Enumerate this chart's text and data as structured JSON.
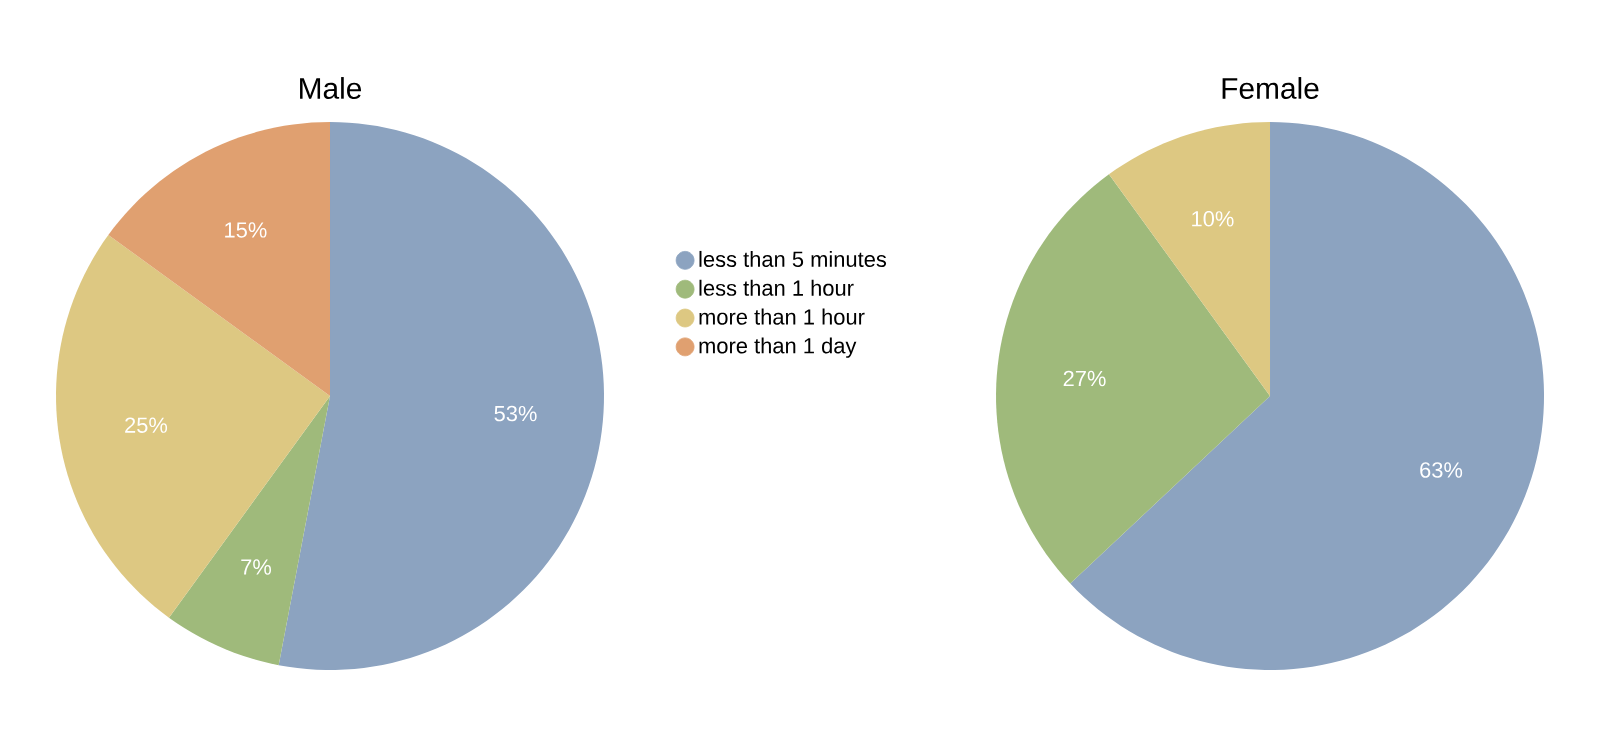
{
  "chart_data": [
    {
      "type": "pie",
      "title": "Male",
      "categories": [
        "less than 5 minutes",
        "less than 1 hour",
        "more than 1 hour",
        "more than 1 day"
      ],
      "values": [
        53,
        7,
        25,
        15
      ],
      "value_labels": [
        "53%",
        "7%",
        "25%",
        "15%"
      ],
      "colors": [
        "#8ca3c0",
        "#9fba7b",
        "#ddc882",
        "#e0a070"
      ],
      "legend": "right"
    },
    {
      "type": "pie",
      "title": "Female",
      "categories": [
        null,
        null,
        null
      ],
      "values": [
        63,
        27,
        10
      ],
      "value_labels": [
        "63%",
        "27%",
        "10%"
      ],
      "colors": [
        "#8ca3c0",
        "#9fba7b",
        "#ddc882"
      ]
    }
  ]
}
